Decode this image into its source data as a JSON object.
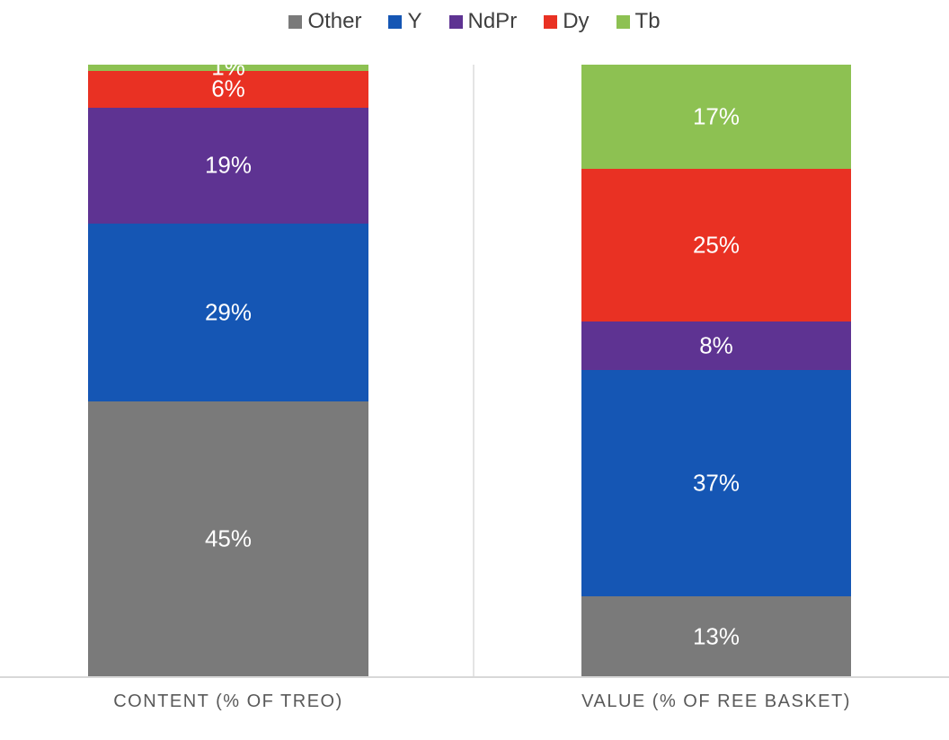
{
  "chart_data": {
    "type": "bar",
    "variant": "stacked-column-100",
    "title": "",
    "xlabel": "",
    "ylabel": "",
    "ylim": [
      0,
      100
    ],
    "grid": false,
    "legend_position": "top",
    "value_labels": true,
    "value_label_color": "#FFFFFF",
    "categories": [
      "CONTENT (% OF TREO)",
      "VALUE (% OF REE BASKET)"
    ],
    "series": [
      {
        "name": "Other",
        "color": "#7A7A7A",
        "values": [
          45,
          13
        ],
        "labels": [
          "45%",
          "13%"
        ]
      },
      {
        "name": "Y",
        "color": "#1556B4",
        "values": [
          29,
          37
        ],
        "labels": [
          "29%",
          "37%"
        ]
      },
      {
        "name": "NdPr",
        "color": "#5E3392",
        "values": [
          19,
          8
        ],
        "labels": [
          "19%",
          "8%"
        ]
      },
      {
        "name": "Dy",
        "color": "#E93123",
        "values": [
          6,
          25
        ],
        "labels": [
          "6%",
          "25%"
        ]
      },
      {
        "name": "Tb",
        "color": "#8DC152",
        "values": [
          1,
          17
        ],
        "labels": [
          "1%",
          "17%"
        ]
      }
    ]
  },
  "legend": {
    "items": [
      {
        "label": "Other",
        "color": "#7A7A7A"
      },
      {
        "label": "Y",
        "color": "#1556B4"
      },
      {
        "label": "NdPr",
        "color": "#5E3392"
      },
      {
        "label": "Dy",
        "color": "#E93123"
      },
      {
        "label": "Tb",
        "color": "#8DC152"
      }
    ]
  },
  "axis": {
    "left_label": "CONTENT (% OF TREO)",
    "right_label": "VALUE (% OF REE BASKET)",
    "line_color": "#D8D8D8",
    "divider_color": "#E4E4E4",
    "label_color": "#595959"
  }
}
